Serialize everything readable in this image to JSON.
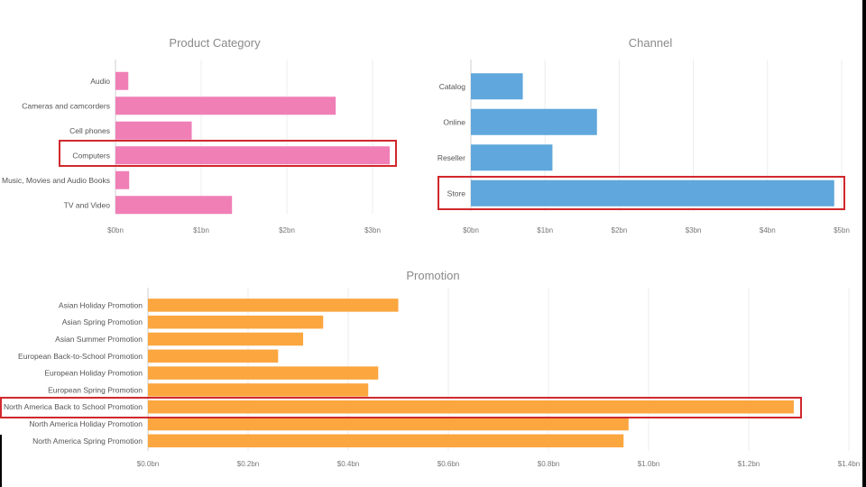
{
  "chart_data": [
    {
      "type": "bar",
      "orientation": "horizontal",
      "title": "Product Category",
      "categories": [
        "Audio",
        "Cameras and camcorders",
        "Cell phones",
        "Computers",
        "Music, Movies and Audio Books",
        "TV and Video"
      ],
      "values": [
        0.15,
        2.57,
        0.89,
        3.2,
        0.16,
        1.36
      ],
      "xlim": [
        0,
        3.2
      ],
      "ticks": [
        0,
        1,
        2,
        3
      ],
      "tick_labels": [
        "$0bn",
        "$1bn",
        "$2bn",
        "$3bn"
      ],
      "highlighted": "Computers",
      "color": "#f07fb6"
    },
    {
      "type": "bar",
      "orientation": "horizontal",
      "title": "Channel",
      "categories": [
        "Catalog",
        "Online",
        "Reseller",
        "Store"
      ],
      "values": [
        0.7,
        1.7,
        1.1,
        4.9
      ],
      "xlim": [
        0,
        5
      ],
      "ticks": [
        0,
        1,
        2,
        3,
        4,
        5
      ],
      "tick_labels": [
        "$0bn",
        "$1bn",
        "$2bn",
        "$3bn",
        "$4bn",
        "$5bn"
      ],
      "highlighted": "Store",
      "color": "#5fa7dc"
    },
    {
      "type": "bar",
      "orientation": "horizontal",
      "title": "Promotion",
      "categories": [
        "Asian Holiday Promotion",
        "Asian Spring Promotion",
        "Asian Summer Promotion",
        "European Back-to-School Promotion",
        "European Holiday Promotion",
        "European Spring Promotion",
        "North America Back to School Promotion",
        "North America Holiday Promotion",
        "North America Spring Promotion"
      ],
      "values": [
        0.5,
        0.35,
        0.31,
        0.26,
        0.46,
        0.44,
        1.29,
        0.96,
        0.95
      ],
      "xlim": [
        0,
        1.4
      ],
      "ticks": [
        0,
        0.2,
        0.4,
        0.6,
        0.8,
        1.0,
        1.2,
        1.4
      ],
      "tick_labels": [
        "$0.0bn",
        "$0.2bn",
        "$0.4bn",
        "$0.6bn",
        "$0.8bn",
        "$1.0bn",
        "$1.2bn",
        "$1.4bn"
      ],
      "highlighted": "North America Back to School Promotion",
      "color": "#fba63f"
    }
  ]
}
